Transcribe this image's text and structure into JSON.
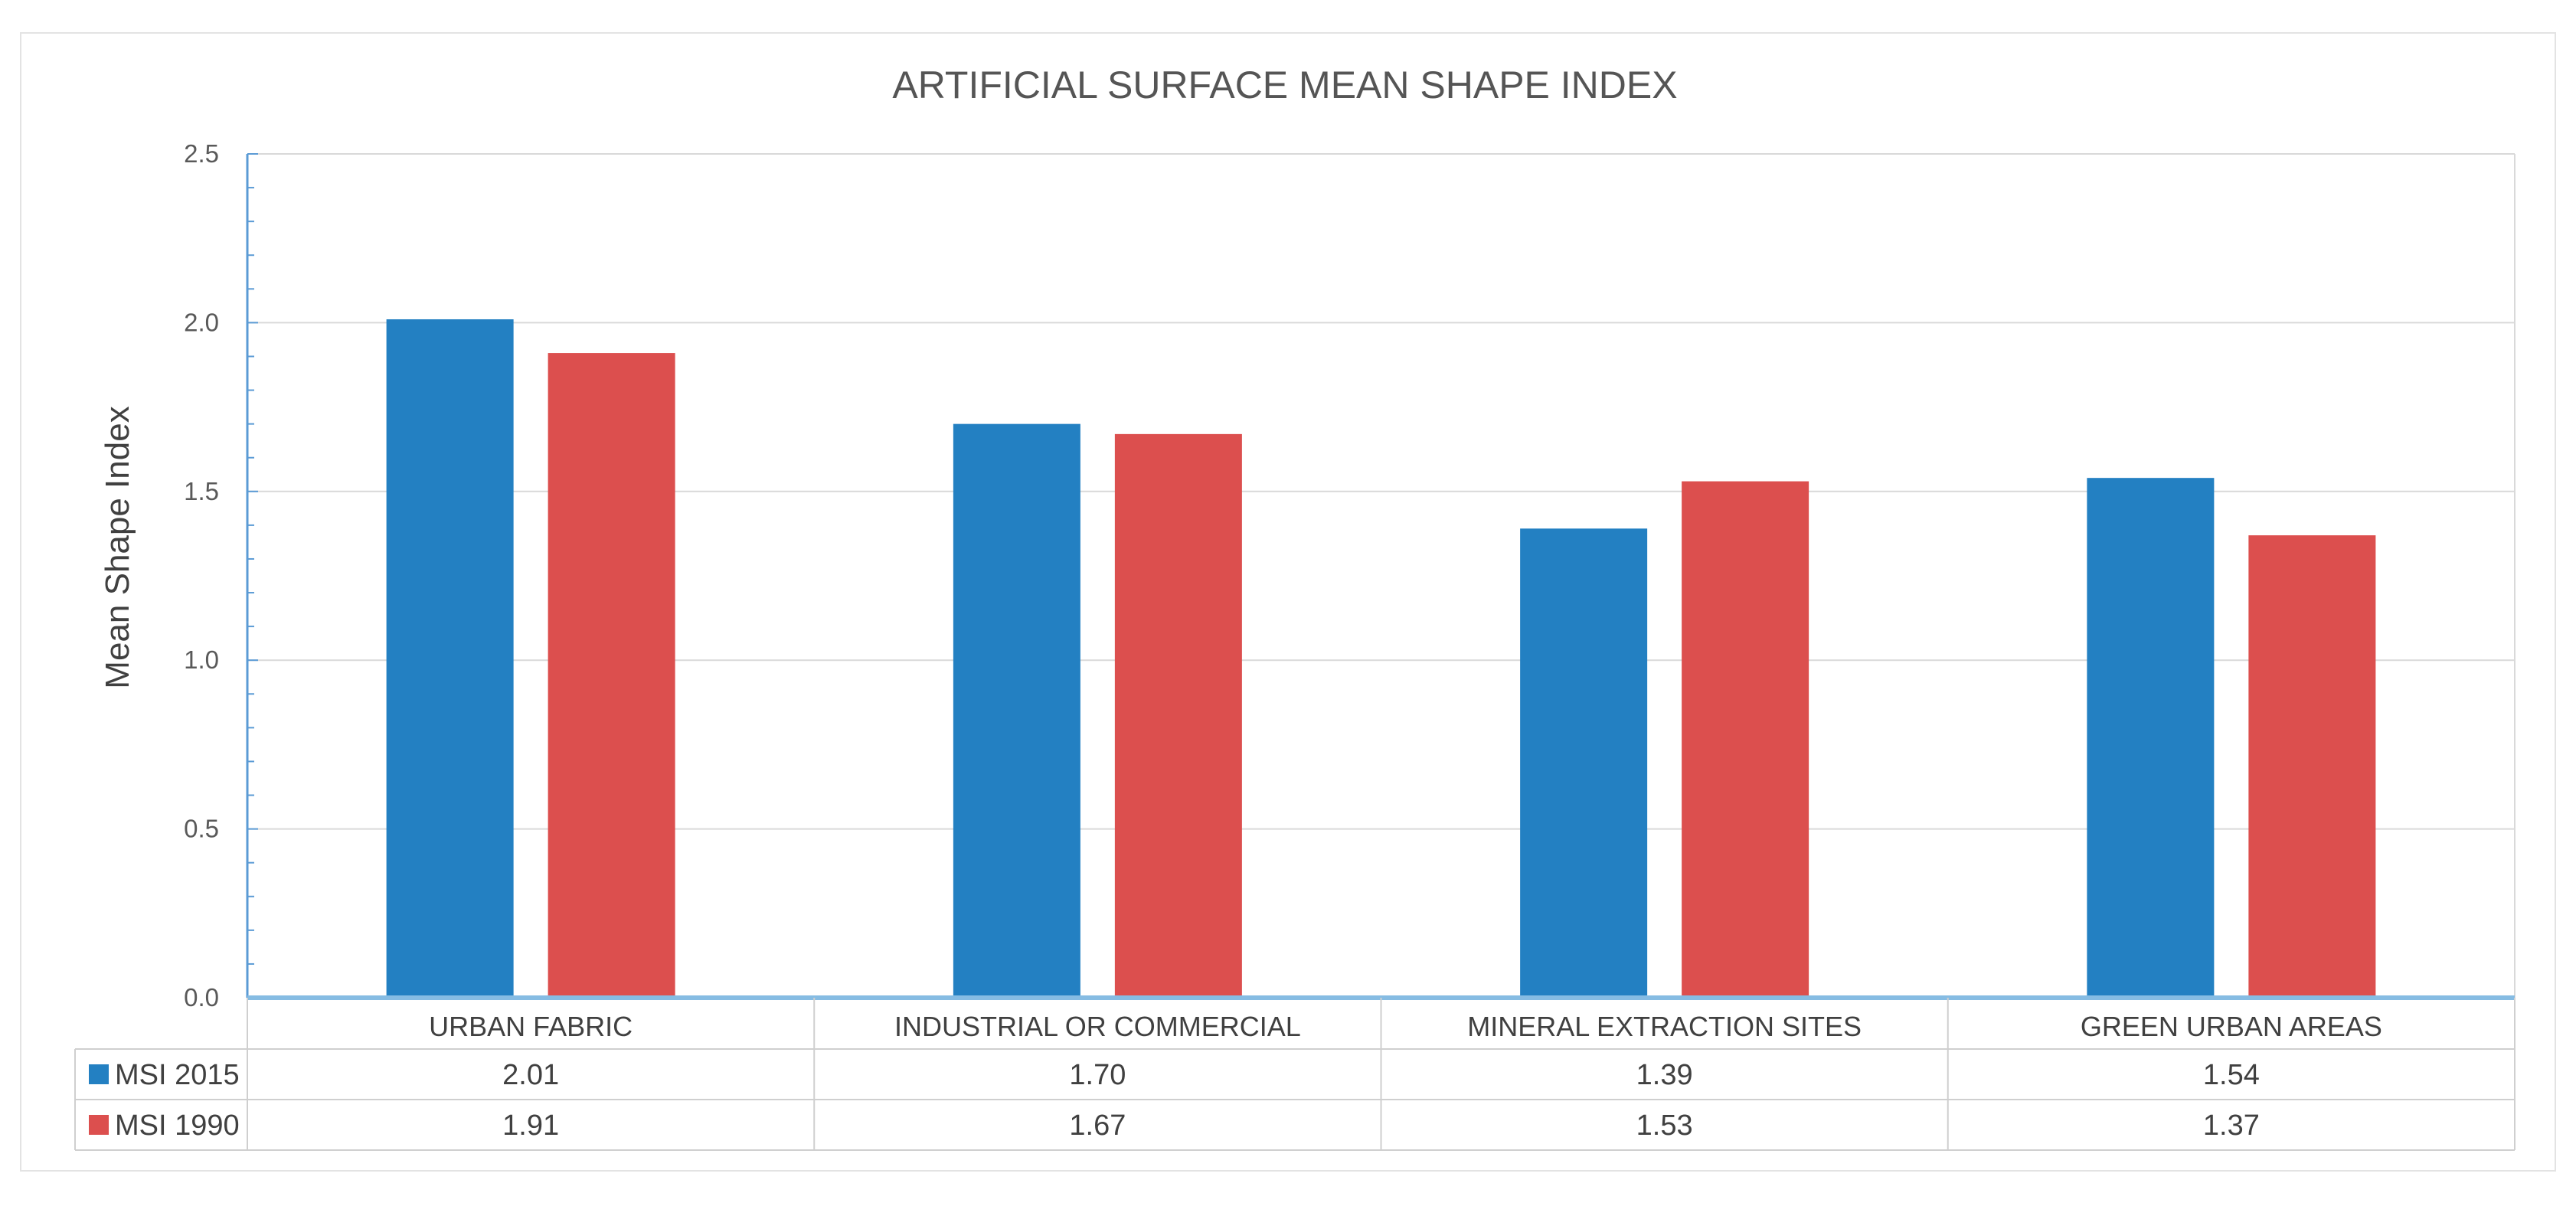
{
  "chart_data": {
    "type": "bar",
    "title": "ARTIFICIAL SURFACE MEAN SHAPE INDEX",
    "xlabel": "",
    "ylabel": "Mean Shape Index",
    "ylim": [
      0,
      2.5
    ],
    "yticks": [
      "0.0",
      "0.5",
      "1.0",
      "1.5",
      "2.0",
      "2.5"
    ],
    "categories": [
      "URBAN FABRIC",
      "INDUSTRIAL OR COMMERCIAL",
      "MINERAL EXTRACTION SITES",
      "GREEN URBAN AREAS"
    ],
    "series": [
      {
        "name": "MSI 2015",
        "color": "#2380C2",
        "values": [
          2.01,
          1.7,
          1.39,
          1.54
        ],
        "labels": [
          "2.01",
          "1.70",
          "1.39",
          "1.54"
        ]
      },
      {
        "name": "MSI 1990",
        "color": "#DC4F4E",
        "values": [
          1.91,
          1.67,
          1.53,
          1.37
        ],
        "labels": [
          "1.91",
          "1.67",
          "1.53",
          "1.37"
        ]
      }
    ],
    "grid": true,
    "legend": "data-table"
  }
}
